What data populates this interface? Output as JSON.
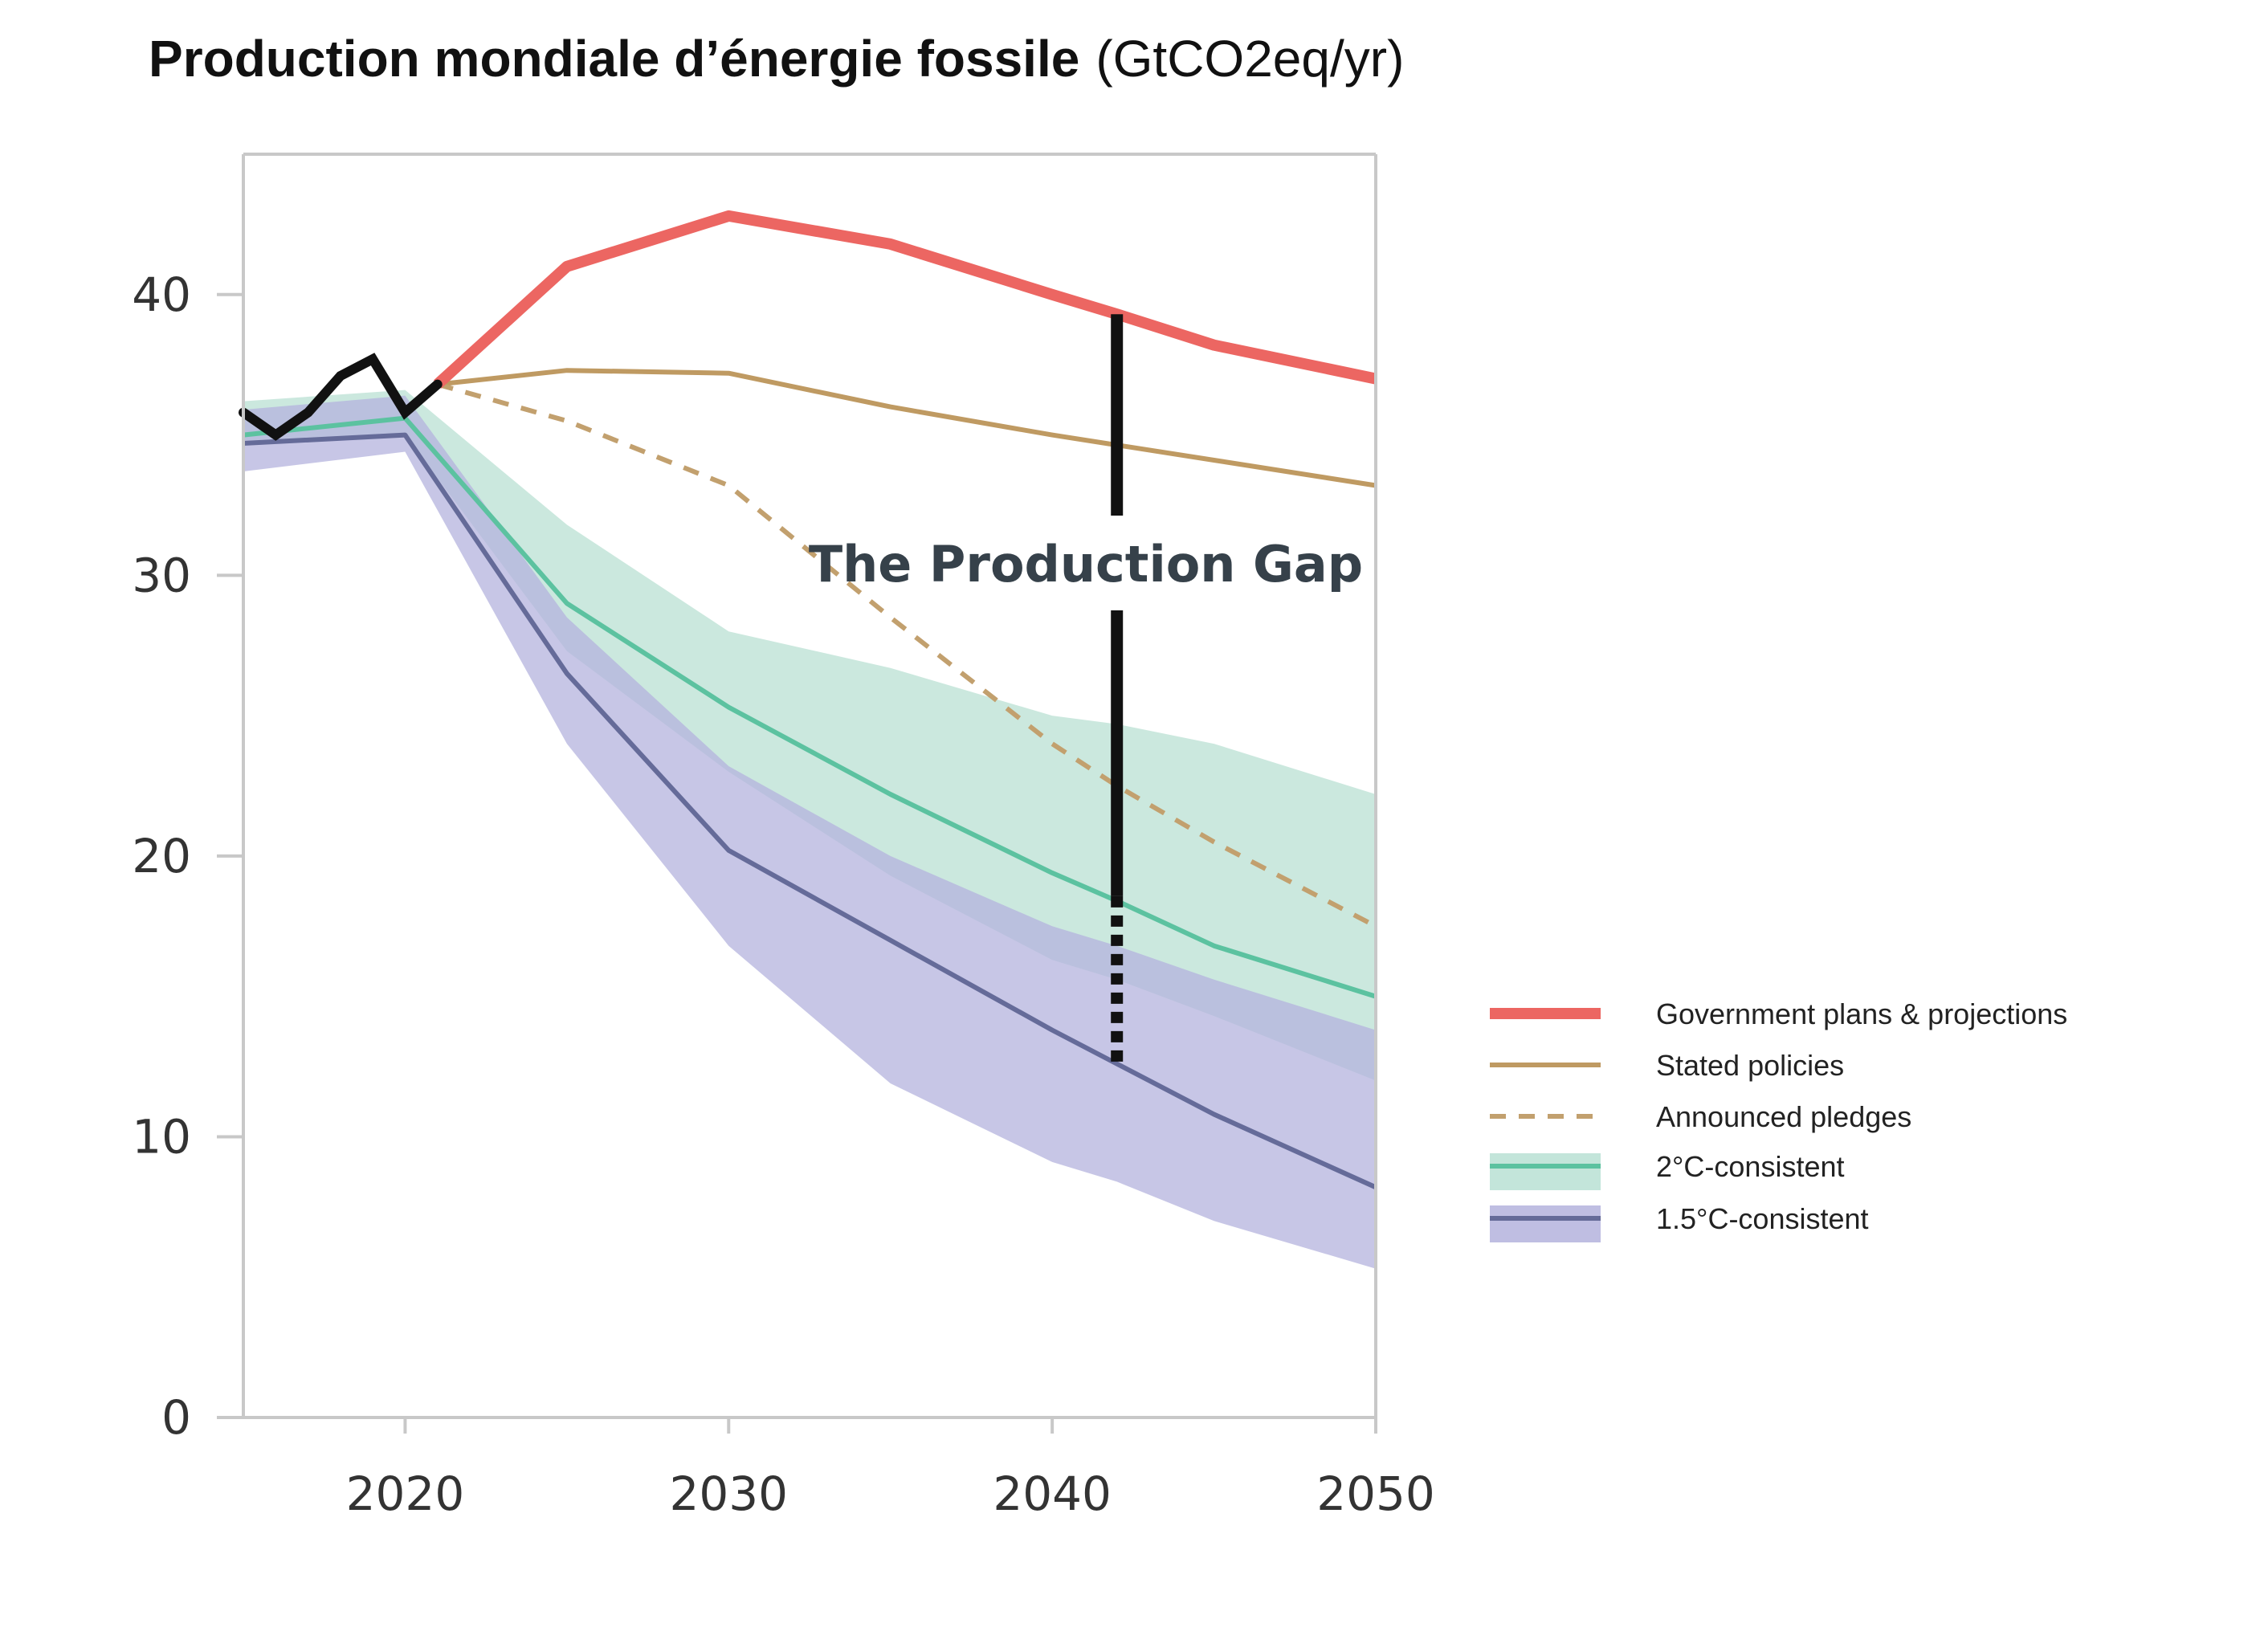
{
  "title": {
    "bold": "Production mondiale d’énergie fossile",
    "unit": "(GtCO2eq/yr)"
  },
  "annotation": "The Production Gap",
  "chart_data": {
    "type": "line",
    "xlim": [
      2015,
      2050
    ],
    "ylim": [
      0,
      45
    ],
    "x_ticks": [
      "2020",
      "2030",
      "2040",
      "2050"
    ],
    "y_ticks": [
      "0",
      "10",
      "20",
      "30",
      "40"
    ],
    "grid": false,
    "legend_position": "right",
    "colors": {
      "government": "#ec6662",
      "stated": "#bf9a62",
      "pledges": "#c2a06e",
      "two_c": "#5cc2a0",
      "two_c_band": "#b9e0d3",
      "one_five_c": "#656b99",
      "one_five_c_band": "#b4b3dd",
      "historical": "#111111",
      "gap_line": "#111111"
    },
    "series": [
      {
        "name": "Government plans & projections",
        "style": "thick",
        "x": [
          2021,
          2025,
          2030,
          2035,
          2040,
          2042,
          2045,
          2050
        ],
        "y": [
          36.8,
          41.0,
          42.8,
          41.8,
          40.0,
          39.3,
          38.2,
          37.0
        ]
      },
      {
        "name": "Stated policies",
        "style": "solid",
        "x": [
          2021,
          2025,
          2030,
          2035,
          2040,
          2045,
          2050
        ],
        "y": [
          36.8,
          37.3,
          37.2,
          36.0,
          35.0,
          34.1,
          33.2
        ]
      },
      {
        "name": "Announced pledges",
        "style": "dashed",
        "x": [
          2021,
          2025,
          2030,
          2035,
          2040,
          2042,
          2045,
          2050
        ],
        "y": [
          36.8,
          35.5,
          33.2,
          28.5,
          24.0,
          22.5,
          20.5,
          17.5
        ]
      },
      {
        "name": "2°C-consistent",
        "style": "band",
        "x": [
          2015,
          2020,
          2025,
          2030,
          2035,
          2040,
          2042,
          2045,
          2050
        ],
        "y": [
          35.0,
          35.6,
          29.0,
          25.3,
          22.2,
          19.4,
          18.4,
          16.8,
          15.0
        ],
        "low": [
          34.8,
          35.0,
          27.3,
          23.0,
          19.3,
          16.3,
          15.6,
          14.3,
          12.0
        ],
        "high": [
          36.2,
          36.6,
          31.8,
          28.0,
          26.7,
          25.0,
          24.7,
          24.0,
          22.2
        ]
      },
      {
        "name": "1.5°C-consistent",
        "style": "band",
        "x": [
          2015,
          2020,
          2025,
          2030,
          2035,
          2040,
          2042,
          2045,
          2050
        ],
        "y": [
          34.7,
          35.0,
          26.5,
          20.2,
          17.0,
          13.8,
          12.6,
          10.8,
          8.2
        ],
        "low": [
          33.7,
          34.4,
          24.0,
          16.8,
          11.9,
          9.1,
          8.4,
          7.0,
          5.3
        ],
        "high": [
          35.9,
          36.4,
          28.5,
          23.2,
          20.0,
          17.5,
          16.8,
          15.6,
          13.8
        ]
      }
    ],
    "historical": {
      "x": [
        2015,
        2016,
        2017,
        2018,
        2019,
        2020,
        2021
      ],
      "y": [
        35.8,
        35.0,
        35.8,
        37.1,
        37.7,
        35.8,
        36.8
      ]
    },
    "gap": {
      "x": 2042,
      "solid_from": 39.3,
      "solid_to": 18.4,
      "dashed_to": 12.6
    }
  }
}
